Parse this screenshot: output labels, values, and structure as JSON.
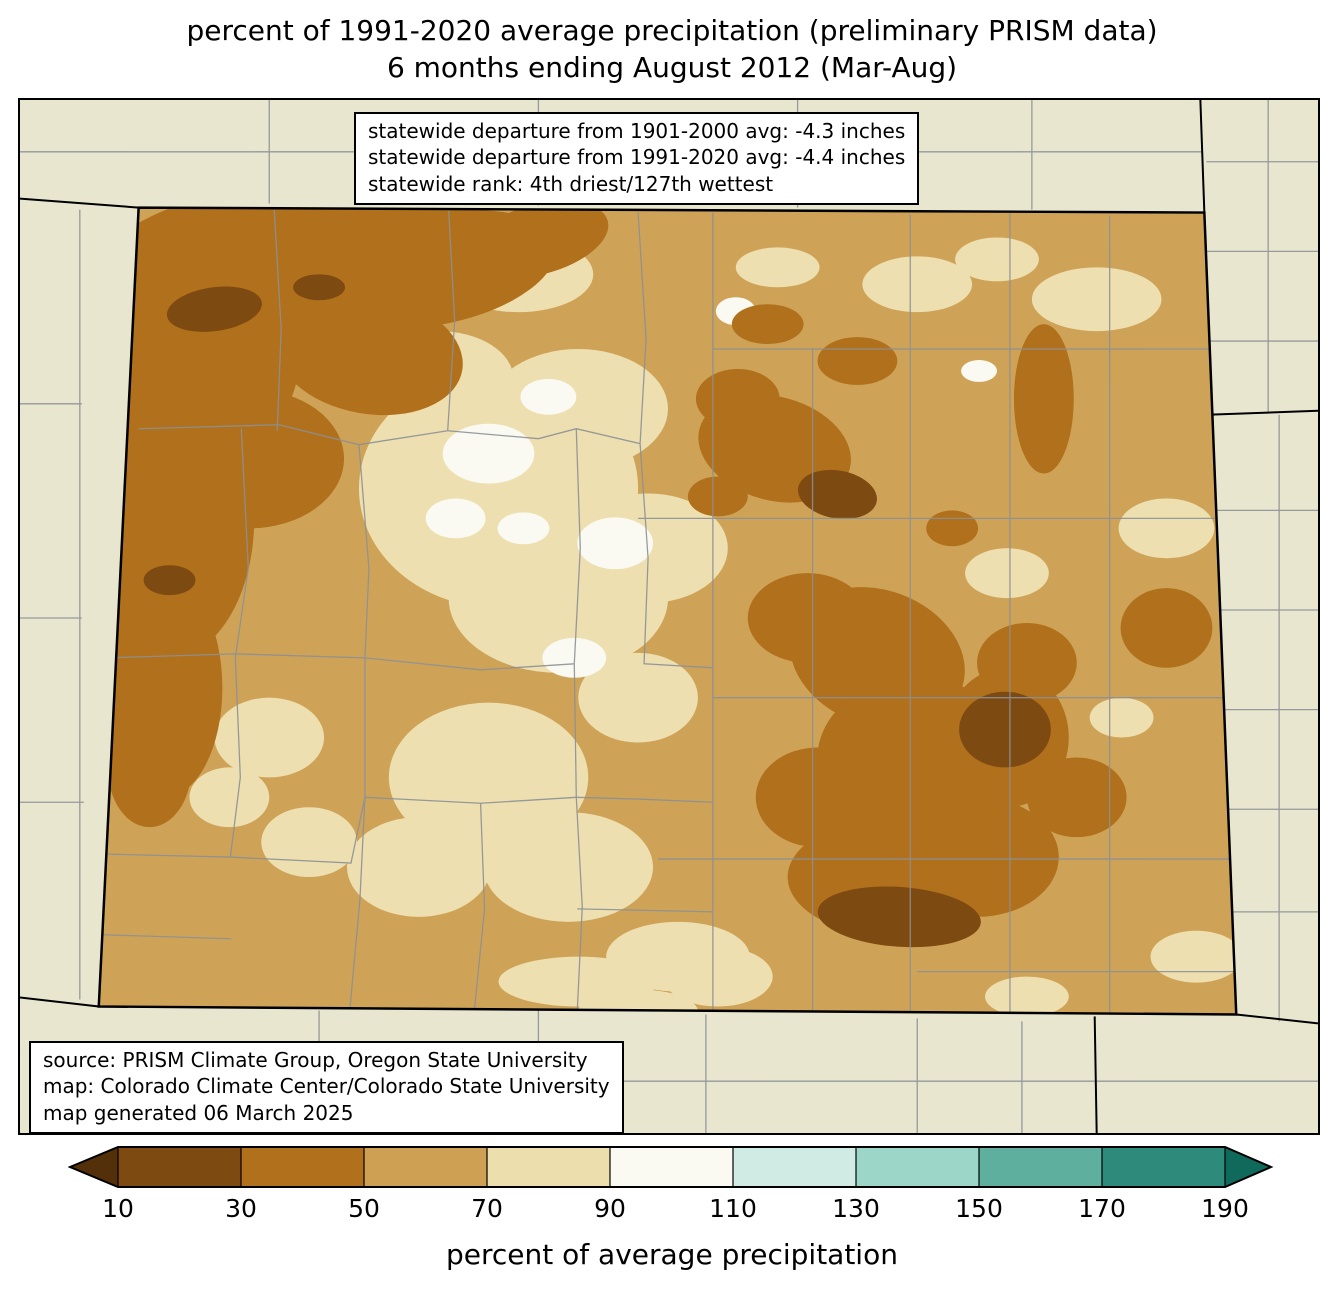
{
  "title": {
    "line1": "percent of 1991-2020 average precipitation (preliminary PRISM data)",
    "line2": "6 months ending August 2012 (Mar-Aug)"
  },
  "stats_box": {
    "lines": [
      "statewide departure from 1901-2000 avg: -4.3 inches",
      "statewide departure from 1991-2020 avg: -4.4 inches",
      "statewide rank: 4th driest/127th wettest"
    ]
  },
  "source_box": {
    "lines": [
      "source: PRISM Climate Group, Oregon State University",
      "map: Colorado Climate Center/Colorado State University",
      "map generated 06 March 2025"
    ]
  },
  "colorbar": {
    "label": "percent of average precipitation",
    "tick_labels": [
      "10",
      "30",
      "50",
      "70",
      "90",
      "110",
      "130",
      "150",
      "170",
      "190"
    ],
    "under_arrow_color": "#53300a",
    "over_arrow_color": "#0f6a5b",
    "segment_colors": [
      "#7d4a11",
      "#b1701b",
      "#cda053",
      "#ecdead",
      "#fafaf2",
      "#d0ebe3",
      "#9bd6c9",
      "#5faf9f",
      "#2e8a7b"
    ]
  },
  "map": {
    "background_color": "#e9e6d0",
    "colorado_base_color": "#cfa357",
    "state_border_color": "#000000",
    "county_line_color": "#8b9196",
    "fill_colors": {
      "pct_10_30": "#7d4a11",
      "pct_30_50": "#b1701b",
      "pct_50_70": "#cfa357",
      "pct_70_90": "#eedfb0",
      "pct_90_110": "#fafaf2"
    }
  }
}
